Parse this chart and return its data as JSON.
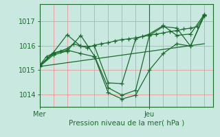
{
  "xlabel": "Pression niveau de la mer( hPa )",
  "bg_color": "#c8e8e0",
  "plot_bg_color": "#c8e8e0",
  "line_color": "#1a6b2a",
  "grid_color_h": "#e8a0a0",
  "grid_color_v": "#e8a0a0",
  "ylim": [
    1013.5,
    1017.7
  ],
  "xlim": [
    0,
    76
  ],
  "yticks": [
    1014,
    1015,
    1016,
    1017
  ],
  "xtick_positions": [
    0,
    48
  ],
  "xtick_labels": [
    "Mer",
    "Jeu"
  ],
  "vline_x": 48,
  "series": [
    {
      "x": [
        0,
        3,
        6,
        9,
        12,
        15,
        18,
        21,
        24,
        27,
        30,
        33,
        36,
        39,
        42,
        45,
        48,
        51,
        54,
        57,
        60,
        63,
        66,
        69,
        72
      ],
      "y": [
        1015.2,
        1015.55,
        1015.7,
        1015.78,
        1015.88,
        1016.08,
        1015.98,
        1015.92,
        1016.02,
        1016.08,
        1016.12,
        1016.2,
        1016.25,
        1016.28,
        1016.32,
        1016.38,
        1016.42,
        1016.48,
        1016.52,
        1016.58,
        1016.62,
        1016.68,
        1016.72,
        1016.78,
        1017.22
      ],
      "marker": "+"
    },
    {
      "x": [
        0,
        6,
        12,
        18,
        24,
        30,
        36,
        42,
        48,
        54,
        60,
        66,
        72
      ],
      "y": [
        1015.18,
        1015.68,
        1015.82,
        1015.68,
        1015.55,
        1014.08,
        1013.82,
        1013.98,
        1015.0,
        1015.68,
        1016.08,
        1015.98,
        1017.22
      ],
      "marker": "+"
    },
    {
      "x": [
        0,
        6,
        12,
        18,
        24,
        30,
        36,
        42,
        48,
        54,
        60,
        66,
        72
      ],
      "y": [
        1015.15,
        1015.62,
        1015.78,
        1016.42,
        1015.58,
        1014.28,
        1013.98,
        1014.18,
        1016.42,
        1016.78,
        1016.72,
        1015.98,
        1017.25
      ],
      "marker": "+"
    },
    {
      "x": [
        0,
        6,
        12,
        18,
        24,
        30,
        36,
        42,
        48,
        54,
        60,
        66,
        72
      ],
      "y": [
        1015.18,
        1015.72,
        1016.45,
        1015.98,
        1015.98,
        1014.48,
        1014.45,
        1016.28,
        1016.48,
        1016.82,
        1016.42,
        1016.48,
        1017.28
      ],
      "marker": "+"
    },
    {
      "x": [
        0,
        72
      ],
      "y": [
        1015.15,
        1016.08
      ],
      "marker": null
    }
  ]
}
